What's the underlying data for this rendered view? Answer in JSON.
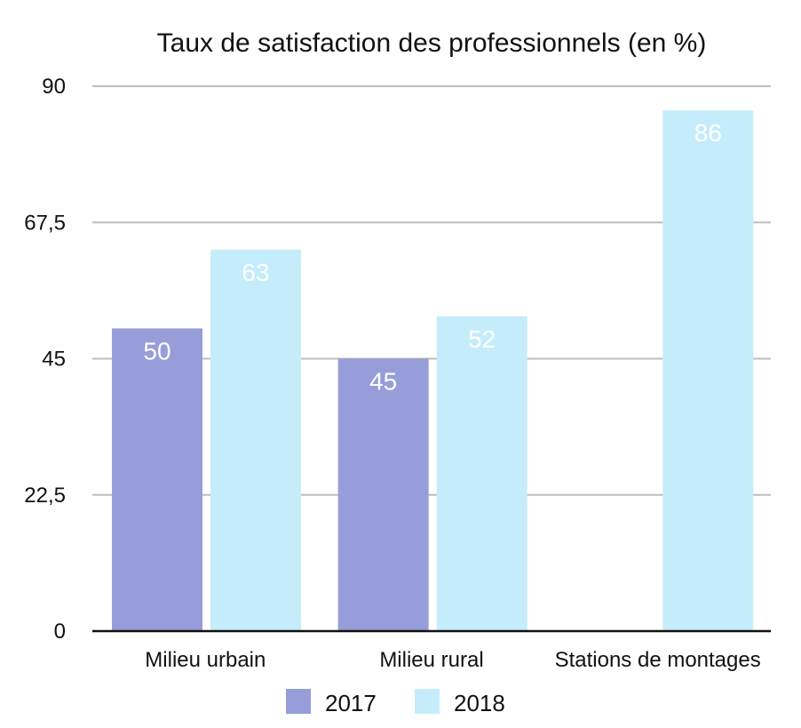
{
  "chart_data": {
    "type": "bar",
    "title": "Taux de satisfaction des professionnels (en %)",
    "xlabel": "",
    "ylabel": "",
    "categories": [
      "Milieu urbain",
      "Milieu rural",
      "Stations de montages"
    ],
    "series": [
      {
        "name": "2017",
        "values": [
          50,
          45,
          null
        ],
        "color": "#979dd9"
      },
      {
        "name": "2018",
        "values": [
          63,
          52,
          86
        ],
        "color": "#c5ecfb"
      }
    ],
    "ylim": [
      0,
      90
    ],
    "yticks": [
      0,
      22.5,
      45,
      67.5,
      90
    ],
    "ytick_labels": [
      "0",
      "22,5",
      "45",
      "67,5",
      "90"
    ],
    "grid": true,
    "legend_position": "bottom",
    "data_labels": true
  }
}
